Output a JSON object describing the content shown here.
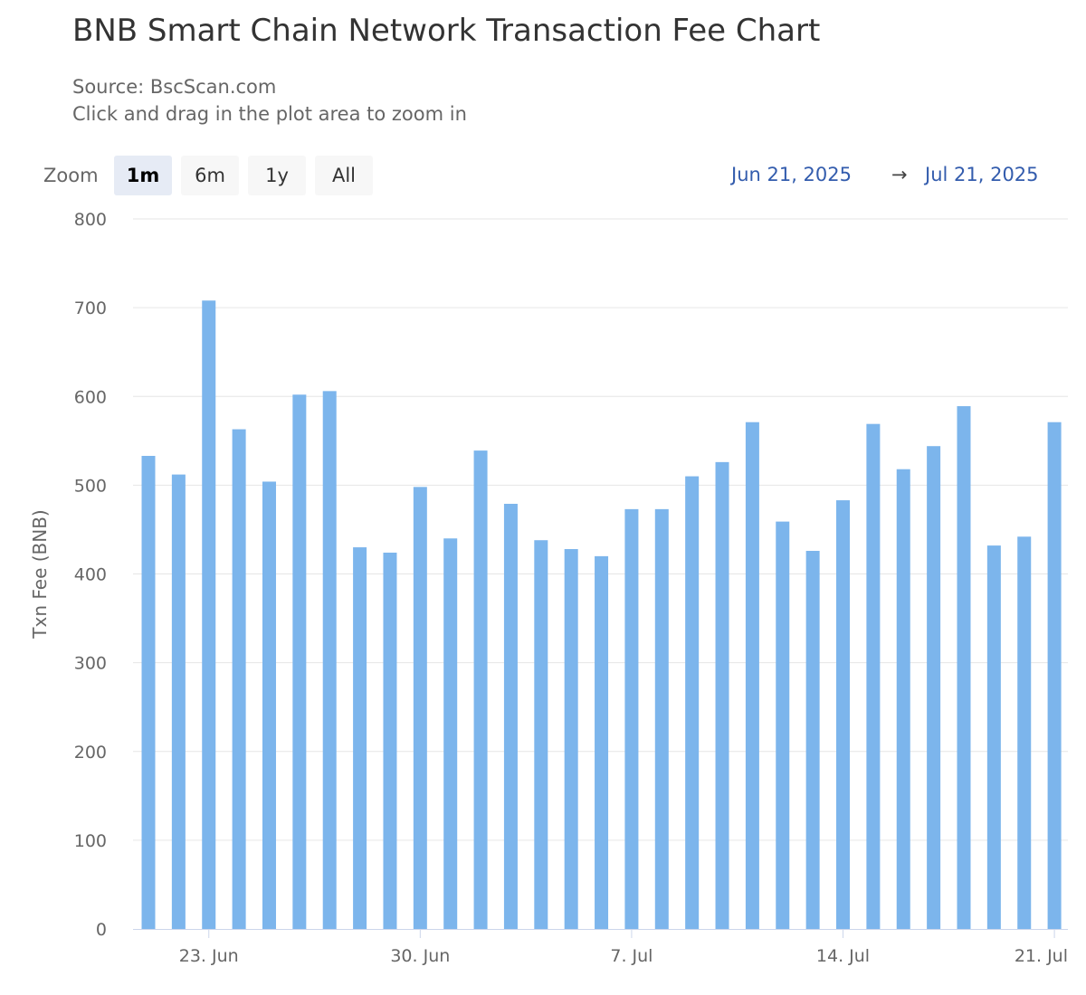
{
  "header": {
    "title": "BNB Smart Chain Network Transaction Fee Chart",
    "source": "Source: BscScan.com",
    "hint": "Click and drag in the plot area to zoom in"
  },
  "zoom": {
    "label": "Zoom",
    "buttons": [
      "1m",
      "6m",
      "1y",
      "All"
    ],
    "active": "1m"
  },
  "range": {
    "from": "Jun 21, 2025",
    "arrow": "→",
    "to": "Jul 21, 2025"
  },
  "colors": {
    "bar": "#7cb5ec",
    "grid": "#e6e6e6",
    "axis": "#ccd6eb",
    "range_text": "#335cad"
  },
  "chart_data": {
    "type": "bar",
    "title": "BNB Smart Chain Network Transaction Fee Chart",
    "subtitle": "Source: BscScan.com",
    "xlabel": "",
    "ylabel": "Txn Fee (BNB)",
    "ylim": [
      0,
      800
    ],
    "yticks": [
      0,
      100,
      200,
      300,
      400,
      500,
      600,
      700,
      800
    ],
    "grid": true,
    "legend": "none",
    "x_tick_labels": [
      {
        "label": "23. Jun",
        "date": "2025-06-23"
      },
      {
        "label": "30. Jun",
        "date": "2025-06-30"
      },
      {
        "label": "7. Jul",
        "date": "2025-07-07"
      },
      {
        "label": "14. Jul",
        "date": "2025-07-14"
      },
      {
        "label": "21. Jul",
        "date": "2025-07-21"
      }
    ],
    "categories": [
      "2025-06-21",
      "2025-06-22",
      "2025-06-23",
      "2025-06-24",
      "2025-06-25",
      "2025-06-26",
      "2025-06-27",
      "2025-06-28",
      "2025-06-29",
      "2025-06-30",
      "2025-07-01",
      "2025-07-02",
      "2025-07-03",
      "2025-07-04",
      "2025-07-05",
      "2025-07-06",
      "2025-07-07",
      "2025-07-08",
      "2025-07-09",
      "2025-07-10",
      "2025-07-11",
      "2025-07-12",
      "2025-07-13",
      "2025-07-14",
      "2025-07-15",
      "2025-07-16",
      "2025-07-17",
      "2025-07-18",
      "2025-07-19",
      "2025-07-20",
      "2025-07-21"
    ],
    "values": [
      533,
      512,
      708,
      563,
      504,
      602,
      606,
      430,
      424,
      498,
      440,
      539,
      479,
      438,
      428,
      420,
      473,
      473,
      510,
      526,
      571,
      459,
      426,
      483,
      569,
      518,
      544,
      589,
      432,
      442,
      571
    ]
  }
}
